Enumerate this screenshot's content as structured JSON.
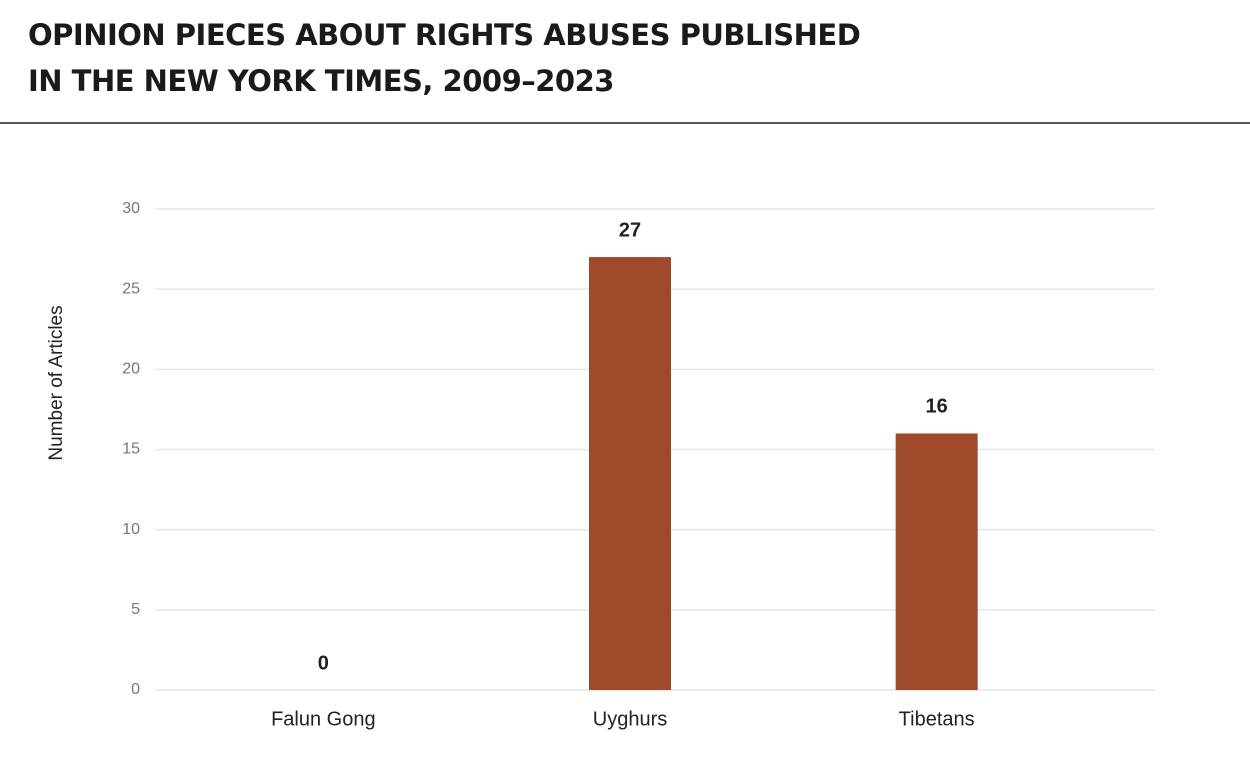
{
  "chart_data": {
    "type": "bar",
    "title": [
      "OPINION PIECES ABOUT RIGHTS ABUSES PUBLISHED",
      "IN THE NEW YORK TIMES, 2009–2023"
    ],
    "y_label": "Number of Articles",
    "categories": [
      "Falun Gong",
      "Uyghurs",
      "Tibetans"
    ],
    "values": [
      0,
      27,
      16
    ],
    "color": "#a0492a",
    "ylim": [
      0,
      30
    ],
    "yticks": [
      0,
      5,
      10,
      15,
      20,
      25,
      30
    ],
    "grid": true
  }
}
